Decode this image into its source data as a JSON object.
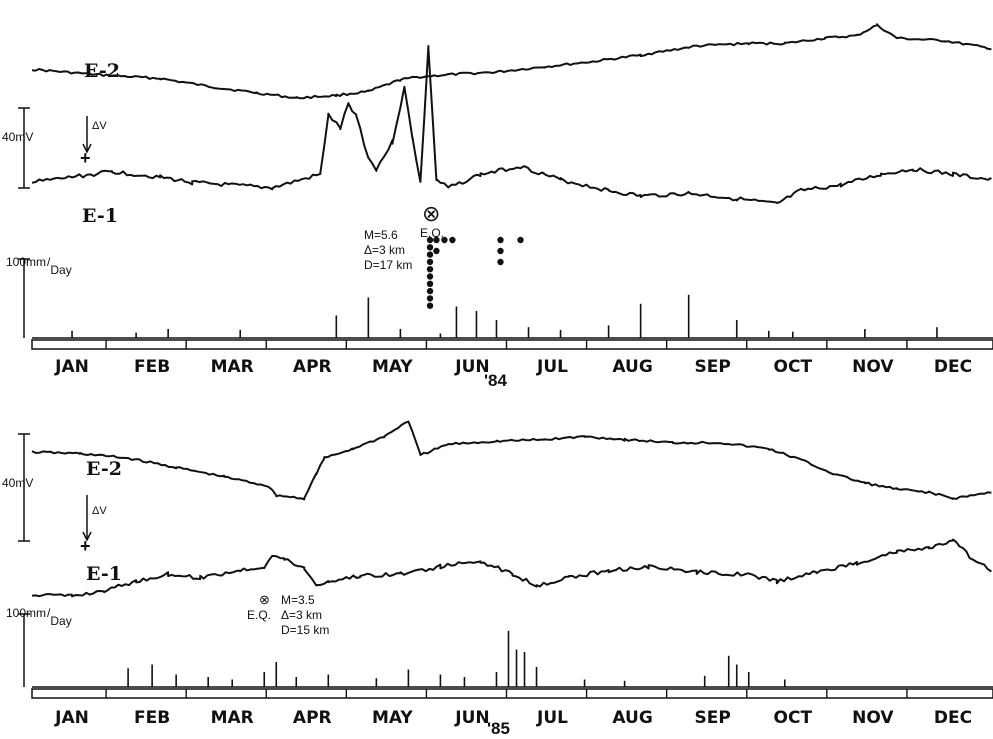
{
  "chart_data": [
    {
      "type": "line",
      "year_label": "'84",
      "x_categories": [
        "JAN",
        "FEB",
        "MAR",
        "APR",
        "MAY",
        "JUN",
        "JUL",
        "AUG",
        "SEP",
        "OCT",
        "NOV",
        "DEC"
      ],
      "scale_labels": {
        "voltage": "40mV",
        "delta_v": "ΔV",
        "polarity": "+",
        "rain_num": "100mm",
        "rain_den": "Day"
      },
      "series": [
        {
          "name": "E-2",
          "points": [
            [
              0,
              22
            ],
            [
              0.8,
              18
            ],
            [
              1.6,
              15
            ],
            [
              2.3,
              8
            ],
            [
              2.8,
              4
            ],
            [
              3.3,
              0
            ],
            [
              3.8,
              2
            ],
            [
              4.2,
              5
            ],
            [
              4.6,
              14
            ],
            [
              4.8,
              16
            ],
            [
              5.2,
              18
            ],
            [
              5.8,
              20
            ],
            [
              6.4,
              24
            ],
            [
              7.0,
              28
            ],
            [
              7.6,
              33
            ],
            [
              8.3,
              40
            ],
            [
              8.95,
              42
            ],
            [
              9.4,
              42
            ],
            [
              9.9,
              46
            ],
            [
              10.3,
              48
            ],
            [
              10.55,
              56
            ],
            [
              10.8,
              46
            ],
            [
              11.4,
              44
            ],
            [
              11.98,
              38
            ]
          ]
        },
        {
          "name": "E-1",
          "points": [
            [
              0,
              5
            ],
            [
              0.5,
              7
            ],
            [
              1.0,
              9
            ],
            [
              1.6,
              7
            ],
            [
              2.0,
              5
            ],
            [
              2.5,
              4
            ],
            [
              3.0,
              3
            ],
            [
              3.6,
              8
            ],
            [
              3.7,
              30
            ],
            [
              3.85,
              25
            ],
            [
              3.95,
              34
            ],
            [
              4.05,
              30
            ],
            [
              4.2,
              14
            ],
            [
              4.3,
              10
            ],
            [
              4.5,
              20
            ],
            [
              4.65,
              40
            ],
            [
              4.75,
              22
            ],
            [
              4.85,
              5
            ],
            [
              4.95,
              55
            ],
            [
              5.05,
              6
            ],
            [
              5.2,
              3
            ],
            [
              5.6,
              8
            ],
            [
              6.1,
              11
            ],
            [
              6.6,
              6
            ],
            [
              7.2,
              2
            ],
            [
              7.6,
              0
            ],
            [
              8.2,
              1
            ],
            [
              8.8,
              -1
            ],
            [
              9.3,
              -3
            ],
            [
              9.6,
              2
            ],
            [
              10.1,
              4
            ],
            [
              10.6,
              8
            ],
            [
              11.0,
              10
            ],
            [
              11.5,
              8
            ],
            [
              11.98,
              6
            ]
          ]
        }
      ],
      "rainfall_markers": [
        [
          0.5,
          8
        ],
        [
          1.3,
          6
        ],
        [
          1.7,
          10
        ],
        [
          2.6,
          9
        ],
        [
          3.8,
          25
        ],
        [
          4.2,
          45
        ],
        [
          4.6,
          10
        ],
        [
          5.1,
          5
        ],
        [
          5.3,
          35
        ],
        [
          5.55,
          30
        ],
        [
          5.8,
          20
        ],
        [
          6.2,
          12
        ],
        [
          6.6,
          9
        ],
        [
          7.2,
          14
        ],
        [
          7.6,
          38
        ],
        [
          8.2,
          48
        ],
        [
          8.8,
          20
        ],
        [
          9.2,
          8
        ],
        [
          9.5,
          7
        ],
        [
          10.4,
          10
        ],
        [
          11.3,
          12
        ]
      ],
      "earthquake": {
        "marker": "⊗",
        "label": "E.Q.",
        "magnitude": "M=5.6",
        "distance": "Δ=3 km",
        "depth": "D=17 km",
        "x": 4.97
      },
      "aftershocks": {
        "column_x": 4.97,
        "column_count": 10,
        "extra": [
          [
            5.05,
            0
          ],
          [
            5.15,
            0
          ],
          [
            5.25,
            0
          ],
          [
            5.05,
            1
          ],
          [
            5.85,
            0
          ],
          [
            5.85,
            1
          ],
          [
            5.85,
            2
          ],
          [
            6.1,
            0
          ]
        ]
      }
    },
    {
      "type": "line",
      "year_label": "'85",
      "x_categories": [
        "JAN",
        "FEB",
        "MAR",
        "APR",
        "MAY",
        "JUN",
        "JUL",
        "AUG",
        "SEP",
        "OCT",
        "NOV",
        "DEC"
      ],
      "scale_labels": {
        "voltage": "40mV",
        "delta_v": "ΔV",
        "polarity": "+",
        "rain_num": "100mm",
        "rain_den": "Day"
      },
      "series": [
        {
          "name": "E-2",
          "points": [
            [
              0,
              40
            ],
            [
              0.6,
              39
            ],
            [
              1.2,
              36
            ],
            [
              1.8,
              30
            ],
            [
              2.4,
              24
            ],
            [
              2.95,
              18
            ],
            [
              3.05,
              12
            ],
            [
              3.4,
              10
            ],
            [
              3.55,
              26
            ],
            [
              3.65,
              36
            ],
            [
              4.0,
              42
            ],
            [
              4.4,
              50
            ],
            [
              4.7,
              60
            ],
            [
              4.85,
              38
            ],
            [
              5.2,
              45
            ],
            [
              5.8,
              47
            ],
            [
              6.4,
              48
            ],
            [
              6.9,
              50
            ],
            [
              7.4,
              48
            ],
            [
              8.0,
              46
            ],
            [
              8.6,
              46
            ],
            [
              9.2,
              42
            ],
            [
              9.6,
              35
            ],
            [
              10.0,
              26
            ],
            [
              10.4,
              20
            ],
            [
              10.8,
              16
            ],
            [
              11.2,
              14
            ],
            [
              11.5,
              10
            ],
            [
              11.98,
              14
            ]
          ]
        },
        {
          "name": "E-1",
          "points": [
            [
              0,
              3
            ],
            [
              0.5,
              2
            ],
            [
              0.9,
              5
            ],
            [
              1.3,
              10
            ],
            [
              1.7,
              14
            ],
            [
              2.1,
              12
            ],
            [
              2.6,
              16
            ],
            [
              2.9,
              18
            ],
            [
              3.0,
              24
            ],
            [
              3.15,
              22
            ],
            [
              3.4,
              17
            ],
            [
              3.55,
              8
            ],
            [
              3.7,
              10
            ],
            [
              4.1,
              13
            ],
            [
              4.6,
              14
            ],
            [
              5.1,
              18
            ],
            [
              5.6,
              21
            ],
            [
              6.0,
              14
            ],
            [
              6.3,
              8
            ],
            [
              6.7,
              12
            ],
            [
              7.2,
              16
            ],
            [
              7.7,
              18
            ],
            [
              8.3,
              15
            ],
            [
              8.9,
              14
            ],
            [
              9.3,
              10
            ],
            [
              9.8,
              15
            ],
            [
              10.3,
              20
            ],
            [
              10.8,
              26
            ],
            [
              11.2,
              28
            ],
            [
              11.5,
              32
            ],
            [
              11.75,
              22
            ],
            [
              11.98,
              16
            ]
          ]
        }
      ],
      "rainfall_markers": [
        [
          1.2,
          15
        ],
        [
          1.5,
          18
        ],
        [
          1.8,
          10
        ],
        [
          2.2,
          8
        ],
        [
          2.5,
          6
        ],
        [
          2.9,
          12
        ],
        [
          3.05,
          20
        ],
        [
          3.3,
          8
        ],
        [
          3.7,
          10
        ],
        [
          4.3,
          7
        ],
        [
          4.7,
          14
        ],
        [
          5.1,
          10
        ],
        [
          5.4,
          8
        ],
        [
          5.8,
          12
        ],
        [
          5.95,
          45
        ],
        [
          6.05,
          30
        ],
        [
          6.15,
          28
        ],
        [
          6.3,
          16
        ],
        [
          6.9,
          6
        ],
        [
          7.4,
          5
        ],
        [
          8.4,
          9
        ],
        [
          8.7,
          25
        ],
        [
          8.8,
          18
        ],
        [
          8.95,
          12
        ],
        [
          9.4,
          6
        ]
      ],
      "earthquake": {
        "marker": "⊗",
        "label": "E.Q.",
        "magnitude": "M=3.5",
        "distance": "Δ=3 km",
        "depth": "D=15 km",
        "x": 2.9
      }
    }
  ]
}
